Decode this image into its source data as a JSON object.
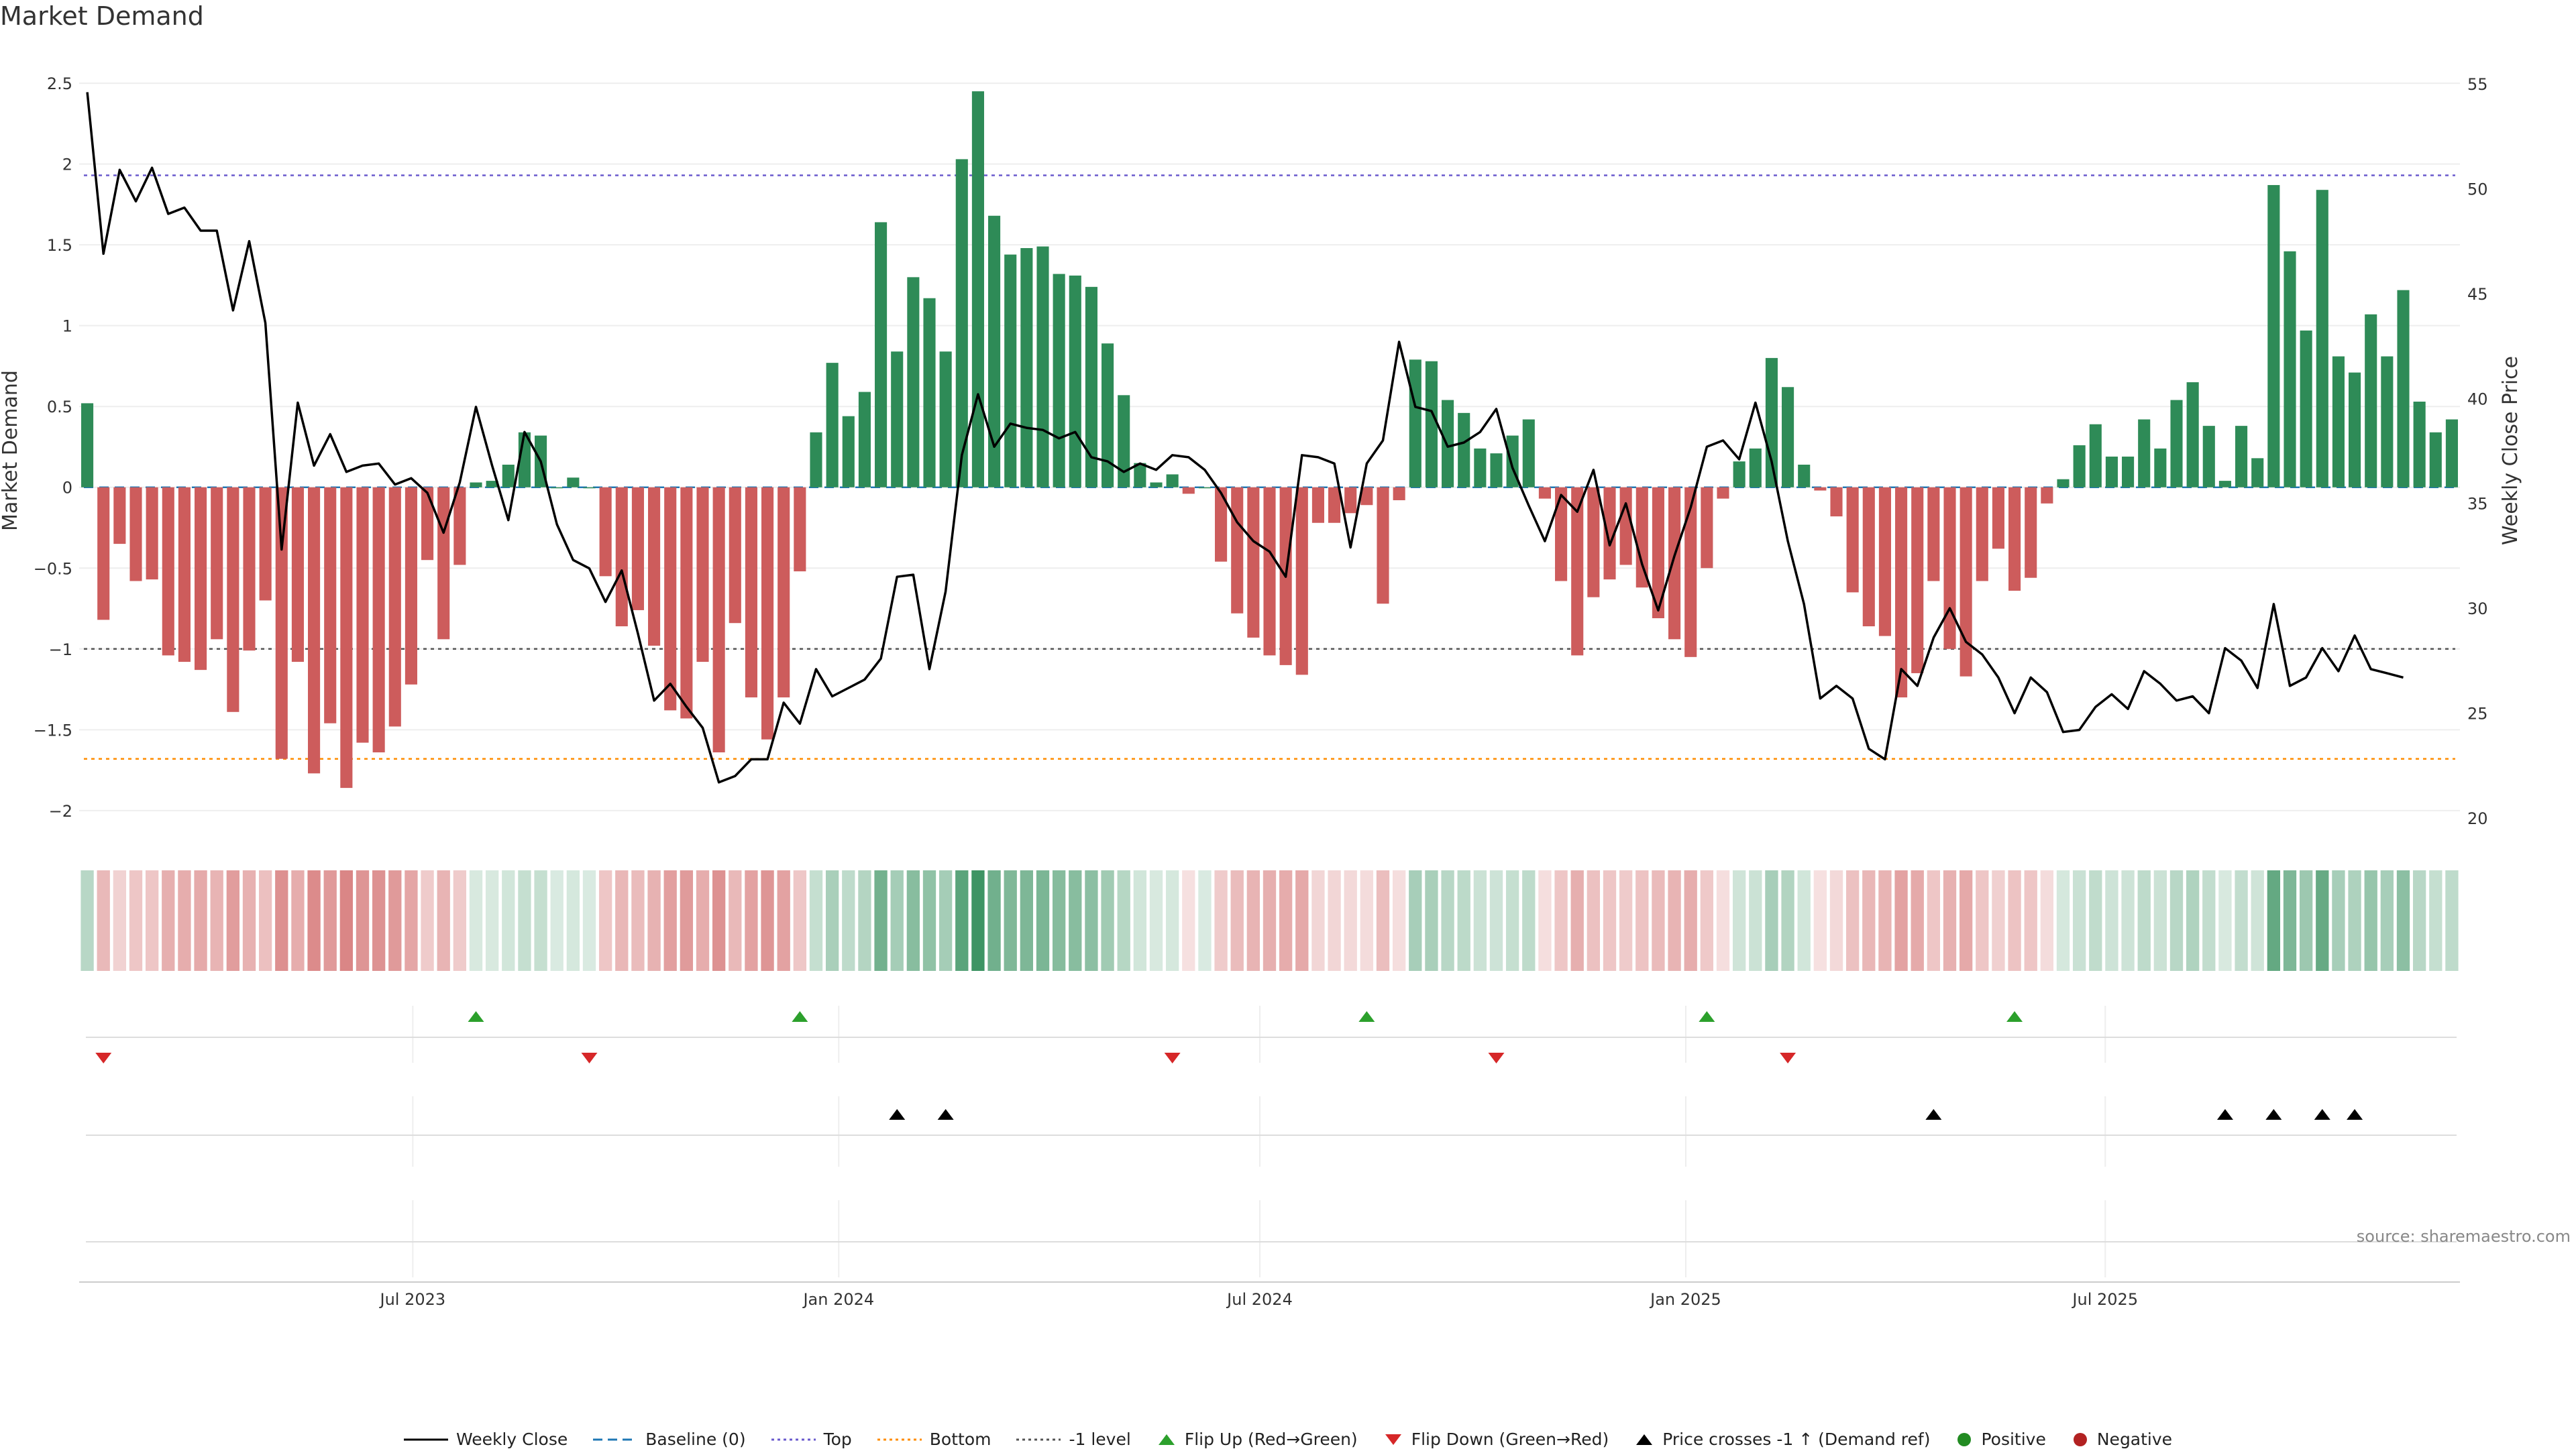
{
  "title": "Market Demand",
  "source": "source: sharemaestro.com",
  "chart_data": {
    "type": "bar",
    "title": "Market Demand",
    "ylabel": "Market Demand",
    "y2label": "Weekly Close Price",
    "ylim": [
      -2.15,
      2.6
    ],
    "y2lim": [
      19.2,
      55.8
    ],
    "yticks": [
      2.5,
      2,
      1.5,
      1,
      0.5,
      0,
      -0.5,
      -1,
      -1.5,
      -2
    ],
    "ytick_labels": [
      "2.5",
      "2",
      "1.5",
      "1",
      "0.5",
      "0",
      "−0.5",
      "−1",
      "−1.5",
      "−2"
    ],
    "y2ticks": [
      55,
      50,
      45,
      40,
      35,
      30,
      25,
      20
    ],
    "y2tick_labels": [
      "55",
      "50",
      "45",
      "40",
      "35",
      "30",
      "25",
      "20"
    ],
    "x_start": "2023-03-06",
    "x_step_weeks": 1,
    "x_ticks": [
      {
        "label": "Jul 2023",
        "week": 20.1
      },
      {
        "label": "Jan 2024",
        "week": 46.4
      },
      {
        "label": "Jul 2024",
        "week": 72.4
      },
      {
        "label": "Jan 2025",
        "week": 98.7
      },
      {
        "label": "Jul 2025",
        "week": 124.6
      }
    ],
    "reference_lines": {
      "top": 1.93,
      "bottom": -1.68,
      "minus_one": -1.0,
      "baseline": 0
    },
    "demand": [
      0.52,
      -0.82,
      -0.35,
      -0.58,
      -0.57,
      -1.04,
      -1.08,
      -1.13,
      -0.94,
      -1.39,
      -1.01,
      -0.7,
      -1.68,
      -1.08,
      -1.77,
      -1.46,
      -1.86,
      -1.58,
      -1.64,
      -1.48,
      -1.22,
      -0.45,
      -0.94,
      -0.48,
      0.03,
      0.04,
      0.14,
      0.34,
      0.32,
      0.0,
      0.06,
      0.0,
      -0.55,
      -0.86,
      -0.76,
      -0.98,
      -1.38,
      -1.43,
      -1.08,
      -1.64,
      -0.84,
      -1.3,
      -1.56,
      -1.3,
      -0.52,
      0.34,
      0.77,
      0.44,
      0.59,
      1.64,
      0.84,
      1.3,
      1.17,
      0.84,
      2.03,
      2.45,
      1.68,
      1.44,
      1.48,
      1.49,
      1.32,
      1.31,
      1.24,
      0.89,
      0.57,
      0.15,
      0.03,
      0.08,
      -0.04,
      0.0,
      -0.46,
      -0.78,
      -0.93,
      -1.04,
      -1.1,
      -1.16,
      -0.22,
      -0.22,
      -0.16,
      -0.11,
      -0.72,
      -0.08,
      0.79,
      0.78,
      0.54,
      0.46,
      0.24,
      0.21,
      0.32,
      0.42,
      -0.07,
      -0.58,
      -1.04,
      -0.68,
      -0.57,
      -0.48,
      -0.62,
      -0.81,
      -0.94,
      -1.05,
      -0.5,
      -0.07,
      0.16,
      0.24,
      0.8,
      0.62,
      0.14,
      -0.02,
      -0.18,
      -0.65,
      -0.86,
      -0.92,
      -1.3,
      -1.15,
      -0.58,
      -1.0,
      -1.17,
      -0.58,
      -0.38,
      -0.64,
      -0.56,
      -0.1,
      0.05,
      0.26,
      0.39,
      0.19,
      0.19,
      0.42,
      0.24,
      0.54,
      0.65,
      0.38,
      0.04,
      0.38,
      0.18,
      1.87,
      1.46,
      0.97,
      1.84,
      0.81,
      0.71,
      1.07,
      0.81,
      1.22,
      0.53,
      0.34,
      0.42
    ],
    "close": [
      54.6,
      46.9,
      50.9,
      49.4,
      51.0,
      48.8,
      49.1,
      48.0,
      48.0,
      44.2,
      47.5,
      43.6,
      32.8,
      39.8,
      36.8,
      38.3,
      36.5,
      36.8,
      36.9,
      35.9,
      36.2,
      35.5,
      33.6,
      36.0,
      39.6,
      36.8,
      34.2,
      38.4,
      37.0,
      34.0,
      32.3,
      31.9,
      30.3,
      31.8,
      28.8,
      25.6,
      26.4,
      25.3,
      24.3,
      21.7,
      22.0,
      22.8,
      22.8,
      25.5,
      24.5,
      27.1,
      25.8,
      26.2,
      26.6,
      27.6,
      31.5,
      31.6,
      27.1,
      30.8,
      37.3,
      40.2,
      37.7,
      38.8,
      38.6,
      38.5,
      38.1,
      38.4,
      37.2,
      37.0,
      36.5,
      36.9,
      36.6,
      37.3,
      37.2,
      36.6,
      35.5,
      34.1,
      33.2,
      32.7,
      31.5,
      37.3,
      37.2,
      36.9,
      32.9,
      36.9,
      38.0,
      42.7,
      39.6,
      39.4,
      37.7,
      37.9,
      38.4,
      39.5,
      36.7,
      34.9,
      33.2,
      35.4,
      34.6,
      36.6,
      33.0,
      35.0,
      32.1,
      29.9,
      32.5,
      34.8,
      37.7,
      38.0,
      37.1,
      39.8,
      37.0,
      33.2,
      30.2,
      25.7,
      26.3,
      25.7,
      23.3,
      22.8,
      27.1,
      26.3,
      28.6,
      30.0,
      28.4,
      27.8,
      26.7,
      25.0,
      26.7,
      26.0,
      24.1,
      24.2,
      25.3,
      25.9,
      25.2,
      27.0,
      26.4,
      25.6,
      25.8,
      25.0,
      28.1,
      27.5,
      26.2,
      30.2,
      26.3,
      26.7,
      28.1,
      27.0,
      28.7,
      27.1,
      26.9,
      26.7
    ],
    "flip_up_weeks": [
      24,
      44,
      79,
      100,
      119
    ],
    "flip_down_weeks": [
      1,
      31,
      67,
      87,
      105
    ],
    "price_cross_weeks": [
      50,
      53,
      114,
      132,
      135,
      138,
      140
    ],
    "legend": [
      "Weekly Close",
      "Baseline (0)",
      "Top",
      "Bottom",
      "-1 level",
      "Flip Up (Red→Green)",
      "Flip Down (Green→Red)",
      "Price crosses -1 ↑ (Demand ref)",
      "Positive",
      "Negative"
    ],
    "colors": {
      "positive": "#2e8b57",
      "negative": "#cd5c5c",
      "close": "#000000",
      "baseline": "#1f77b4",
      "top": "#6a5acd",
      "bottom": "#ff8c00",
      "minus_one": "#555555",
      "flip_up": "#2ca02c",
      "flip_down": "#d62728",
      "cross": "#000000",
      "legend_positive": "#228b22",
      "legend_negative": "#b22222"
    }
  }
}
